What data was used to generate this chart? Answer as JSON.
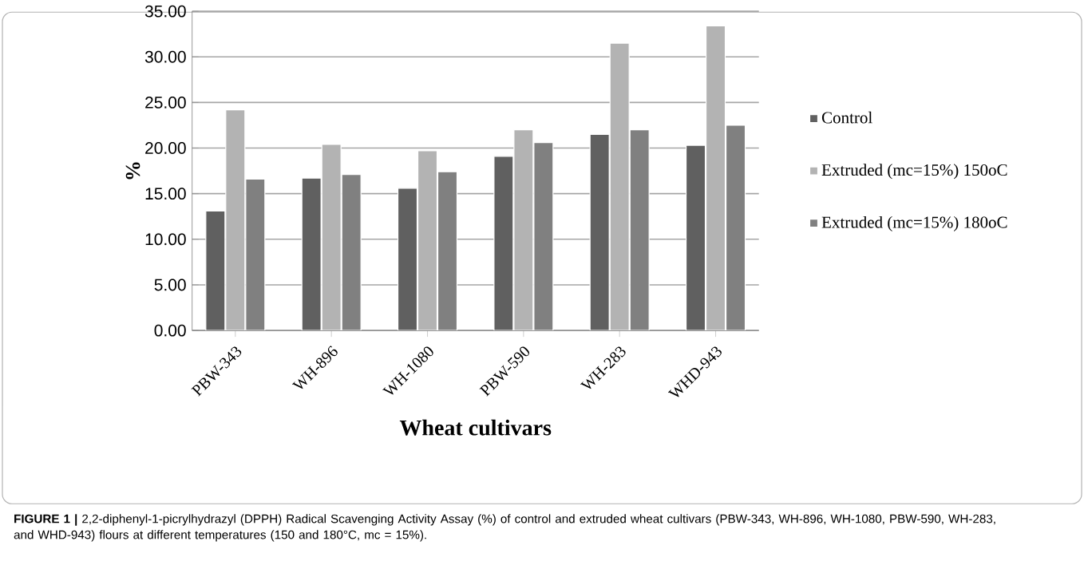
{
  "chart_data": {
    "type": "bar",
    "categories": [
      "PBW-343",
      "WH-896",
      "WH-1080",
      "PBW-590",
      "WH-283",
      "WHD-943"
    ],
    "series": [
      {
        "name": "Control",
        "color": "#606060",
        "values": [
          13.1,
          16.7,
          15.6,
          19.1,
          21.5,
          20.3
        ]
      },
      {
        "name": "Extruded  (mc=15%) 150oC",
        "color": "#b3b3b3",
        "values": [
          24.2,
          20.4,
          19.7,
          22.0,
          31.5,
          33.4
        ]
      },
      {
        "name": "Extruded  (mc=15%) 180oC",
        "color": "#808080",
        "values": [
          16.6,
          17.1,
          17.4,
          20.6,
          22.0,
          22.5
        ]
      }
    ],
    "xlabel": "Wheat cultivars",
    "ylabel": "%",
    "ylim": [
      0,
      35
    ],
    "yticks": [
      {
        "value": 0,
        "label": "0.00"
      },
      {
        "value": 5,
        "label": "5.00"
      },
      {
        "value": 10,
        "label": "10.00"
      },
      {
        "value": 15,
        "label": "15.00"
      },
      {
        "value": 20,
        "label": "20.00"
      },
      {
        "value": 25,
        "label": "25.00"
      },
      {
        "value": 30,
        "label": "30.00"
      },
      {
        "value": 35,
        "label": "35.00"
      }
    ],
    "grid": "y",
    "legend": "right",
    "annotations": [
      "**FIGURE 1 |** 2,2-diphenyl-1-picrylhydrazyl (DPPH) Radical Scavenging Activity Assay (%) of control and extruded wheat cultivars (PBW-343, WH-896, WH-1080, PBW-590, WH-283, and WHD-943) flours at different temperatures (150 and 180°C, mc = 15%)."
    ]
  }
}
